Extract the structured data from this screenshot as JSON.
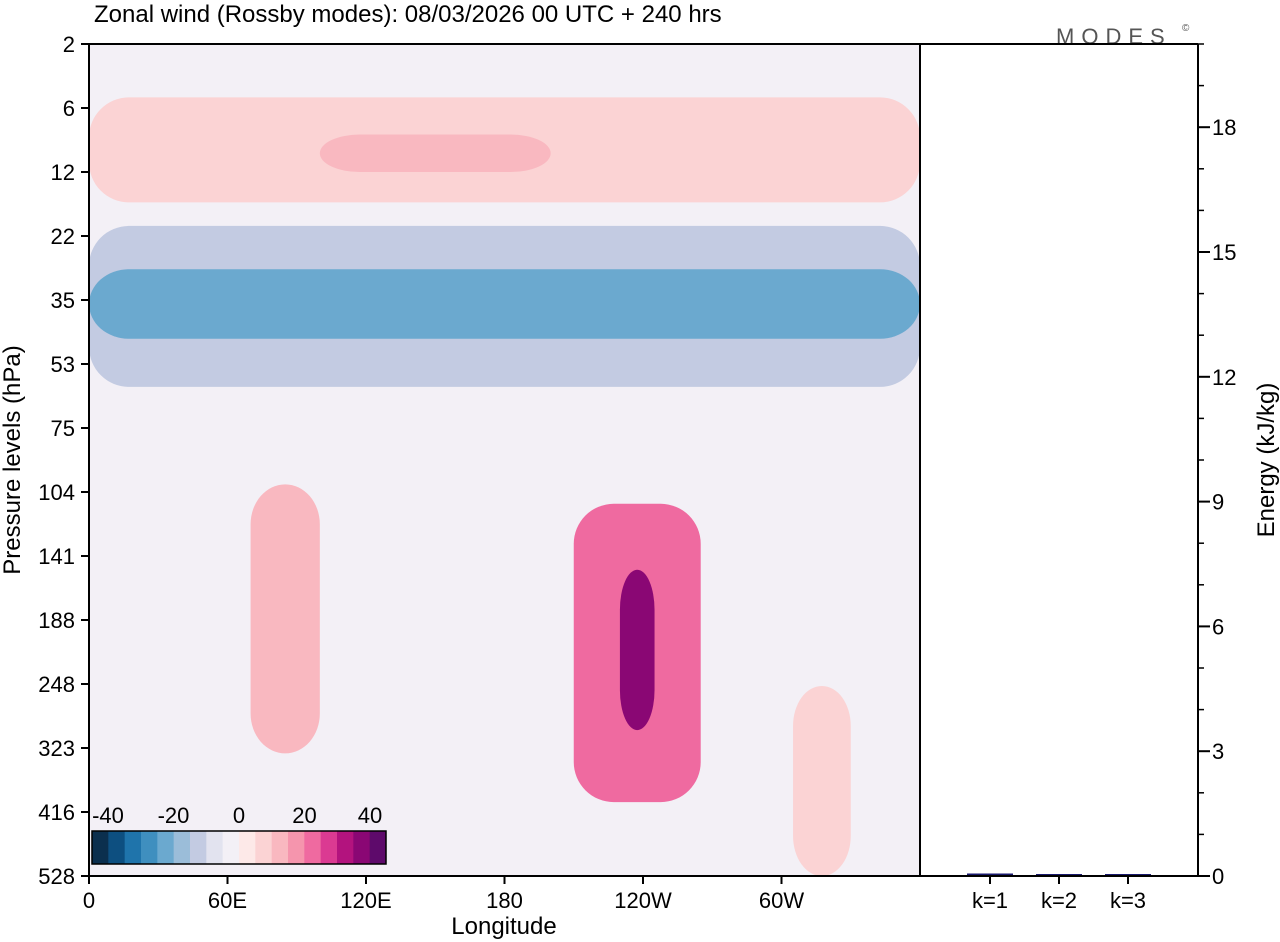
{
  "title": "Zonal wind (Rossby modes):  08/03/2026  00 UTC  + 240 hrs",
  "logo": {
    "text": "MODES",
    "mark": "©"
  },
  "chart_data": [
    {
      "type": "heatmap",
      "name": "zonal-wind-section",
      "xlabel": "Longitude",
      "ylabel": "Pressure levels (hPa)",
      "x_ticks": [
        "0",
        "60E",
        "120E",
        "180",
        "120W",
        "60W"
      ],
      "x_tick_degrees": [
        0,
        60,
        120,
        180,
        240,
        300
      ],
      "xlim": [
        0,
        360
      ],
      "y_ticks": [
        "2",
        "6",
        "12",
        "22",
        "35",
        "53",
        "75",
        "104",
        "141",
        "188",
        "248",
        "323",
        "416",
        "528"
      ],
      "colorbar": {
        "tick_labels": [
          "-40",
          "-20",
          "0",
          "20",
          "40"
        ],
        "colors": [
          "#0b2f4e",
          "#0d4f80",
          "#1f74ab",
          "#3f8fbf",
          "#6ba9cf",
          "#9bbdd9",
          "#c3cbe2",
          "#e2e3ef",
          "#f3f0f6",
          "#fde9e8",
          "#fbd3d4",
          "#f9b8c0",
          "#f595ad",
          "#ef6aa0",
          "#db3a92",
          "#b3137e",
          "#8a0774",
          "#5e0a6b"
        ]
      },
      "features": [
        {
          "level_range": [
            2,
            3
          ],
          "longitude_range": [
            0,
            360
          ],
          "value": -5
        },
        {
          "level_range": [
            5,
            16
          ],
          "longitude_range": [
            0,
            360
          ],
          "value": 5
        },
        {
          "level_range": [
            8,
            12
          ],
          "longitude_range": [
            100,
            200
          ],
          "value": 10
        },
        {
          "level_range": [
            20,
            60
          ],
          "longitude_range": [
            0,
            360
          ],
          "value": -15
        },
        {
          "level_range": [
            28,
            45
          ],
          "longitude_range": [
            0,
            360
          ],
          "value": -25
        },
        {
          "level_range": [
            100,
            330
          ],
          "longitude_range": [
            70,
            100
          ],
          "value": 10
        },
        {
          "level_range": [
            100,
            230
          ],
          "longitude_range": [
            125,
            150
          ],
          "value": -5
        },
        {
          "level_range": [
            110,
            400
          ],
          "longitude_range": [
            210,
            265
          ],
          "value": 20
        },
        {
          "level_range": [
            150,
            300
          ],
          "longitude_range": [
            230,
            245
          ],
          "value": 35
        },
        {
          "level_range": [
            250,
            528
          ],
          "longitude_range": [
            305,
            330
          ],
          "value": 5
        }
      ]
    },
    {
      "type": "bar",
      "name": "energy-by-wavenumber",
      "categories": [
        "k=1",
        "k=2",
        "k=3"
      ],
      "values": [
        0.06,
        0.04,
        0.02
      ],
      "ylabel": "Energy (kJ/kg)",
      "ylim": [
        0,
        20
      ],
      "y_ticks": [
        0,
        3,
        6,
        9,
        12,
        15,
        18
      ],
      "bar_color": "#1a1a6e"
    }
  ]
}
